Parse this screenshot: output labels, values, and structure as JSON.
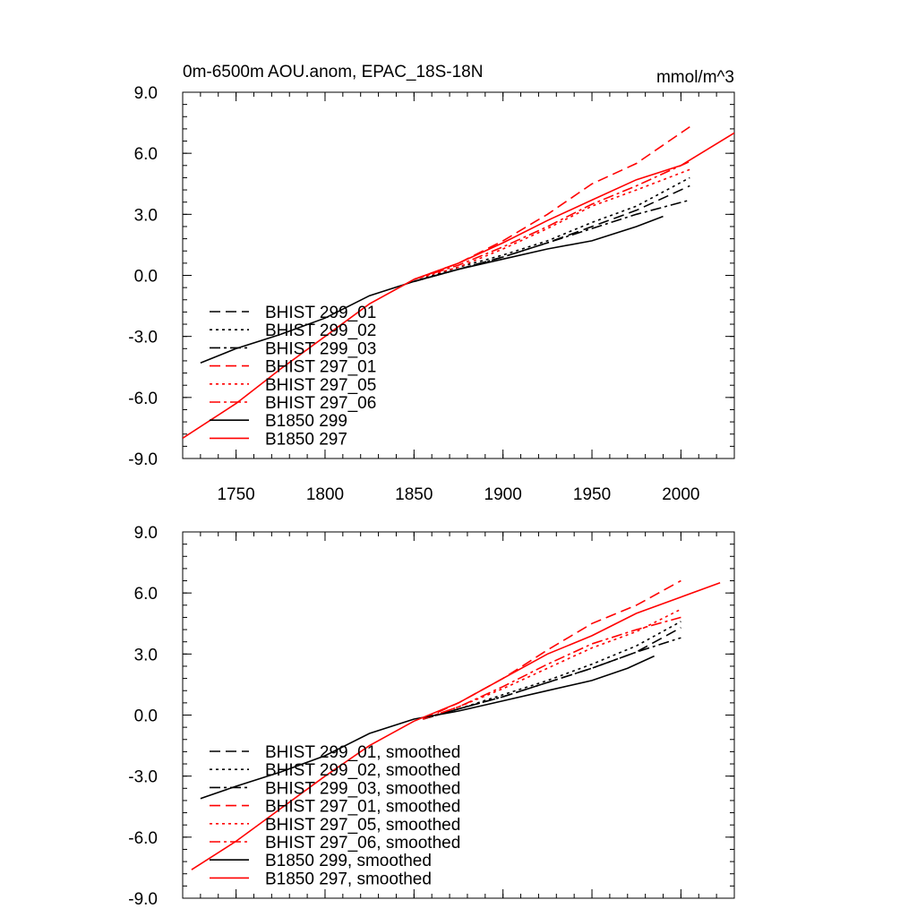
{
  "header": {
    "title": "0m-6500m AOU.anom, EPAC_18S-18N",
    "units": "mmol/m^3"
  },
  "colors": {
    "black": "#000000",
    "red": "#ff0000"
  },
  "chart_data": [
    {
      "type": "line",
      "panel": "top",
      "xlim": [
        1720,
        2030
      ],
      "ylim": [
        -9,
        9
      ],
      "xticks": [
        1750,
        1800,
        1850,
        1900,
        1950,
        2000
      ],
      "yticks": [
        -9,
        -6,
        -3,
        0,
        3,
        6,
        9
      ],
      "ytick_labels": [
        "-9.0",
        "-6.0",
        "-3.0",
        "0.0",
        "3.0",
        "6.0",
        "9.0"
      ],
      "xtick_labels": [
        "1750",
        "1800",
        "1850",
        "1900",
        "1950",
        "2000"
      ],
      "grid": false,
      "legend_placement": "left",
      "series": [
        {
          "name": "BHIST 299_01",
          "color": "#000000",
          "dash": "dash",
          "x": [
            1850,
            1875,
            1900,
            1925,
            1950,
            1975,
            2005
          ],
          "y": [
            -0.3,
            0.3,
            0.9,
            1.6,
            2.4,
            3.2,
            4.4
          ]
        },
        {
          "name": "BHIST 299_02",
          "color": "#000000",
          "dash": "dot",
          "x": [
            1850,
            1875,
            1900,
            1925,
            1950,
            1975,
            2005
          ],
          "y": [
            -0.3,
            0.4,
            1.0,
            1.7,
            2.6,
            3.4,
            4.8
          ]
        },
        {
          "name": "BHIST 299_03",
          "color": "#000000",
          "dash": "dashdot",
          "x": [
            1850,
            1875,
            1900,
            1925,
            1950,
            1975,
            2005
          ],
          "y": [
            -0.3,
            0.3,
            0.9,
            1.6,
            2.3,
            3.0,
            3.7
          ]
        },
        {
          "name": "BHIST 297_01",
          "color": "#ff0000",
          "dash": "dash",
          "x": [
            1850,
            1875,
            1900,
            1925,
            1950,
            1975,
            2005
          ],
          "y": [
            -0.2,
            0.6,
            1.7,
            3.0,
            4.5,
            5.5,
            7.3
          ]
        },
        {
          "name": "BHIST 297_05",
          "color": "#ff0000",
          "dash": "dot",
          "x": [
            1850,
            1875,
            1900,
            1925,
            1950,
            1975,
            2005
          ],
          "y": [
            -0.2,
            0.4,
            1.3,
            2.3,
            3.4,
            4.2,
            5.2
          ]
        },
        {
          "name": "BHIST 297_06",
          "color": "#ff0000",
          "dash": "dashdot",
          "x": [
            1850,
            1875,
            1900,
            1925,
            1950,
            1975,
            2005
          ],
          "y": [
            -0.2,
            0.5,
            1.4,
            2.4,
            3.5,
            4.4,
            5.6
          ]
        },
        {
          "name": "B1850 299",
          "color": "#000000",
          "dash": "solid",
          "x": [
            1730,
            1750,
            1775,
            1800,
            1825,
            1850,
            1875,
            1900,
            1925,
            1950,
            1975,
            1990
          ],
          "y": [
            -4.3,
            -3.6,
            -2.9,
            -2.1,
            -1.0,
            -0.3,
            0.3,
            0.8,
            1.3,
            1.7,
            2.4,
            2.9
          ]
        },
        {
          "name": "B1850 297",
          "color": "#ff0000",
          "dash": "solid",
          "x": [
            1720,
            1750,
            1775,
            1800,
            1825,
            1850,
            1875,
            1900,
            1925,
            1950,
            1975,
            2000,
            2030
          ],
          "y": [
            -8.0,
            -6.3,
            -4.6,
            -3.0,
            -1.4,
            -0.2,
            0.6,
            1.6,
            2.7,
            3.7,
            4.7,
            5.4,
            7.0
          ]
        }
      ]
    },
    {
      "type": "line",
      "panel": "bottom",
      "xlim": [
        1720,
        2030
      ],
      "ylim": [
        -9,
        9
      ],
      "xticks": [
        1750,
        1800,
        1850,
        1900,
        1950,
        2000
      ],
      "yticks": [
        -9,
        -6,
        -3,
        0,
        3,
        6,
        9
      ],
      "ytick_labels": [
        "-9.0",
        "-6.0",
        "-3.0",
        "0.0",
        "3.0",
        "6.0",
        "9.0"
      ],
      "grid": false,
      "legend_placement": "left",
      "series": [
        {
          "name": "BHIST 299_01, smoothed",
          "color": "#000000",
          "dash": "dash",
          "x": [
            1855,
            1875,
            1900,
            1925,
            1950,
            1975,
            2000
          ],
          "y": [
            -0.2,
            0.3,
            0.9,
            1.6,
            2.3,
            3.1,
            4.3
          ]
        },
        {
          "name": "BHIST 299_02, smoothed",
          "color": "#000000",
          "dash": "dot",
          "x": [
            1855,
            1875,
            1900,
            1925,
            1950,
            1975,
            2000
          ],
          "y": [
            -0.2,
            0.3,
            1.0,
            1.7,
            2.5,
            3.4,
            4.6
          ]
        },
        {
          "name": "BHIST 299_03, smoothed",
          "color": "#000000",
          "dash": "dashdot",
          "x": [
            1855,
            1875,
            1900,
            1925,
            1950,
            1975,
            2000
          ],
          "y": [
            -0.2,
            0.3,
            0.9,
            1.6,
            2.3,
            3.1,
            3.8
          ]
        },
        {
          "name": "BHIST 297_01, smoothed",
          "color": "#ff0000",
          "dash": "dash",
          "x": [
            1855,
            1875,
            1900,
            1925,
            1950,
            1975,
            2000
          ],
          "y": [
            -0.2,
            0.6,
            1.8,
            3.2,
            4.5,
            5.4,
            6.6
          ]
        },
        {
          "name": "BHIST 297_05, smoothed",
          "color": "#ff0000",
          "dash": "dot",
          "x": [
            1855,
            1875,
            1900,
            1925,
            1950,
            1975,
            2000
          ],
          "y": [
            -0.2,
            0.4,
            1.3,
            2.3,
            3.3,
            4.1,
            5.2
          ]
        },
        {
          "name": "BHIST 297_06, smoothed",
          "color": "#ff0000",
          "dash": "dashdot",
          "x": [
            1855,
            1875,
            1900,
            1925,
            1950,
            1975,
            2000
          ],
          "y": [
            -0.2,
            0.4,
            1.4,
            2.5,
            3.5,
            4.2,
            4.8
          ]
        },
        {
          "name": "B1850 299, smoothed",
          "color": "#000000",
          "dash": "solid",
          "x": [
            1730,
            1750,
            1775,
            1800,
            1825,
            1850,
            1875,
            1900,
            1925,
            1950,
            1970,
            1985
          ],
          "y": [
            -4.1,
            -3.5,
            -2.8,
            -2.0,
            -0.9,
            -0.2,
            0.2,
            0.7,
            1.2,
            1.7,
            2.3,
            2.9
          ]
        },
        {
          "name": "B1850 297, smoothed",
          "color": "#ff0000",
          "dash": "solid",
          "x": [
            1725,
            1750,
            1775,
            1800,
            1825,
            1850,
            1875,
            1900,
            1925,
            1950,
            1975,
            2000,
            2022
          ],
          "y": [
            -7.6,
            -6.2,
            -4.6,
            -3.0,
            -1.5,
            -0.3,
            0.6,
            1.8,
            3.0,
            3.9,
            5.0,
            5.8,
            6.5
          ]
        }
      ]
    }
  ]
}
